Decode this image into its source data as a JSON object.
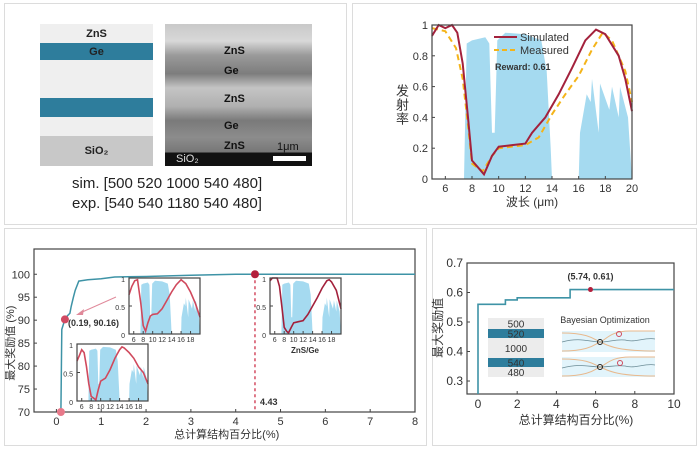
{
  "panel_a": {
    "stack_layers": [
      {
        "label": "ZnS",
        "color": "#efefef"
      },
      {
        "label": "Ge",
        "color": "#2e7d9c"
      },
      {
        "label": "",
        "color": "#efefef"
      },
      {
        "label": "",
        "color": "#2e7d9c"
      },
      {
        "label": "",
        "color": "#efefef"
      },
      {
        "label": "SiO₂",
        "color": "#c8c8c8"
      }
    ],
    "sem_labels": [
      "ZnS",
      "Ge",
      "ZnS",
      "Ge",
      "ZnS"
    ],
    "sem_substrate": "SiO₂",
    "scale_bar": "1μm",
    "sim": "sim. [500 520 1000 540 480]",
    "exp": "exp. [540 540 1180 540 480]"
  },
  "chart_data": [
    {
      "type": "line",
      "xlabel": "波长 (μm)",
      "ylabel": "发射率",
      "xlim": [
        5,
        20
      ],
      "ylim": [
        0,
        1
      ],
      "xticks": [
        6,
        8,
        10,
        12,
        14,
        16,
        18,
        20
      ],
      "yticks": [
        0,
        0.2,
        0.4,
        0.6,
        0.8,
        1
      ],
      "legend_position": "top-center",
      "annotation": "Reward: 0.61",
      "series": [
        {
          "name": "Simulated",
          "color": "#a3213c",
          "style": "solid",
          "x": [
            5,
            5.5,
            6,
            6.5,
            6.9,
            7.3,
            7.7,
            8,
            8.5,
            8.9,
            9.5,
            10,
            11,
            12,
            12.5,
            13.5,
            14.5,
            15.5,
            16.5,
            17.3,
            18,
            19,
            19.5,
            20
          ],
          "y": [
            0.93,
            1,
            0.98,
            1,
            0.95,
            0.75,
            0.4,
            0.12,
            0.07,
            0.03,
            0.15,
            0.21,
            0.22,
            0.23,
            0.3,
            0.4,
            0.55,
            0.72,
            0.9,
            0.97,
            0.94,
            0.8,
            0.65,
            0.44
          ]
        },
        {
          "name": "Measured",
          "color": "#f4b41a",
          "style": "dashed",
          "x": [
            5,
            6,
            6.8,
            7.3,
            7.7,
            8,
            8.8,
            9.5,
            10,
            12,
            13,
            14,
            15,
            16,
            17,
            17.8,
            18.5,
            19.5,
            20
          ],
          "y": [
            0.98,
            0.96,
            0.85,
            0.65,
            0.35,
            0.1,
            0.05,
            0.15,
            0.2,
            0.22,
            0.27,
            0.42,
            0.55,
            0.67,
            0.84,
            0.95,
            0.9,
            0.7,
            0.5
          ]
        },
        {
          "color": "#87ceeb",
          "style": "fill",
          "x": [
            7.4,
            7.6,
            8,
            9,
            9.3,
            9.5,
            9.7,
            9.9,
            10.5,
            12,
            13.2,
            13.6,
            13.9,
            14,
            16,
            16.1,
            16.6,
            16.9,
            17,
            17.5,
            17.6,
            18.3,
            18.5,
            19,
            19.1,
            19.7,
            20
          ],
          "y": [
            0,
            0.88,
            0.9,
            0.92,
            0.88,
            0.3,
            0.3,
            0.9,
            0.95,
            0.94,
            0.9,
            0.7,
            0.2,
            0,
            0,
            0.3,
            0.55,
            0.5,
            0.65,
            0.3,
            0.62,
            0.45,
            0.6,
            0.4,
            0.6,
            0.4,
            0
          ]
        }
      ]
    },
    {
      "type": "line",
      "xlabel": "总计算结构百分比(%)",
      "ylabel": "最大奖励值 (%)",
      "xlim": [
        -0.5,
        8
      ],
      "ylim": [
        70,
        105.5
      ],
      "xticks": [
        0,
        1,
        2,
        3,
        4,
        5,
        6,
        7,
        8
      ],
      "yticks": [
        70,
        75,
        80,
        85,
        90,
        95,
        100
      ],
      "series": [
        {
          "color": "#3e93a6",
          "x": [
            0.1,
            0.12,
            0.19,
            0.25,
            0.3,
            0.33,
            0.38,
            0.42,
            0.5,
            0.55,
            0.7,
            1,
            1.3,
            2,
            3,
            4,
            8
          ],
          "y": [
            70,
            88,
            90.16,
            91,
            91.5,
            93,
            95,
            96.5,
            98.5,
            98.6,
            98.8,
            99,
            99.4,
            99.5,
            99.8,
            100,
            100
          ]
        }
      ],
      "points": [
        {
          "x": 0.1,
          "y": 70,
          "color": "#e8798a"
        },
        {
          "x": 0.19,
          "y": 90.16,
          "color": "#d04a62",
          "label": "(0.19, 90.16)"
        },
        {
          "x": 4.43,
          "y": 100,
          "color": "#b3203d"
        }
      ],
      "vline": {
        "x": 4.43,
        "label": "4.43",
        "color": "#c8203a"
      },
      "insets": [
        {
          "xticks": [
            6,
            8,
            10,
            12,
            14,
            16,
            18
          ],
          "yticks": [
            0,
            0.5,
            1
          ],
          "curve_color": "#d0495d",
          "x": [
            5,
            5.6,
            6.2,
            6.8,
            7.5,
            8,
            8.5,
            9,
            9.5,
            10,
            11,
            12,
            13,
            14,
            15,
            16,
            17,
            18,
            19,
            20
          ],
          "y": [
            0.7,
            0.85,
            0.95,
            0.97,
            0.55,
            0.15,
            0.05,
            0.2,
            0.32,
            0.35,
            0.36,
            0.45,
            0.6,
            0.75,
            0.88,
            0.97,
            0.9,
            0.75,
            0.55,
            0.3
          ]
        },
        {
          "xticks": [
            6,
            8,
            10,
            12,
            14,
            16,
            18
          ],
          "yticks": [
            0,
            0.5,
            1
          ],
          "curve_color": "#d0495d",
          "x": [
            5,
            5.5,
            6,
            6.5,
            7,
            7.5,
            8,
            8.5,
            9,
            9.5,
            10,
            11,
            12,
            13,
            14,
            14.5,
            15,
            16,
            17,
            18,
            19,
            20
          ],
          "y": [
            0.7,
            0.8,
            0.9,
            0.85,
            0.6,
            0.3,
            0.08,
            0.05,
            0.02,
            0.2,
            0.35,
            0.4,
            0.55,
            0.75,
            0.9,
            0.95,
            0.93,
            0.85,
            0.75,
            0.6,
            0.5,
            0.3
          ]
        },
        {
          "xticks": [
            6,
            8,
            10,
            12,
            14,
            16,
            18
          ],
          "yticks": [
            0,
            0.5,
            1
          ],
          "curve_color": "#a3213c",
          "label": "ZnS/Ge",
          "x": [
            5,
            5.5,
            6,
            6.5,
            7,
            7.5,
            8,
            8.5,
            8.9,
            9.5,
            10,
            11,
            12,
            13,
            14,
            15,
            16,
            17,
            17.5,
            18,
            19,
            20
          ],
          "y": [
            0.95,
            1,
            1,
            1,
            0.85,
            0.5,
            0.12,
            0.05,
            0.02,
            0.12,
            0.2,
            0.22,
            0.24,
            0.35,
            0.5,
            0.65,
            0.82,
            0.95,
            0.97,
            0.93,
            0.78,
            0.45
          ]
        }
      ]
    },
    {
      "type": "line",
      "xlabel": "总计算结构百分比(%)",
      "ylabel": "最大奖励值",
      "xlim": [
        -0.56,
        10
      ],
      "ylim": [
        0.256,
        0.7
      ],
      "xticks": [
        0,
        2,
        4,
        6,
        8,
        10
      ],
      "yticks": [
        0.3,
        0.4,
        0.5,
        0.6,
        0.7
      ],
      "series": [
        {
          "color": "#3e93a6",
          "x": [
            0,
            0,
            1.4,
            1.4,
            2,
            2,
            4.7,
            4.7,
            10
          ],
          "y": [
            0.256,
            0.56,
            0.56,
            0.575,
            0.575,
            0.582,
            0.582,
            0.61,
            0.61
          ]
        }
      ],
      "points": [
        {
          "x": 5.74,
          "y": 0.61,
          "color": "#b3203d",
          "label": "(5.74, 0.61)"
        }
      ],
      "stack_labels": [
        {
          "label": "500",
          "color": "#ececec"
        },
        {
          "label": "520",
          "color": "#2e7d9c"
        },
        {
          "label": "1000",
          "color": "#ececec"
        },
        {
          "label": "540",
          "color": "#2e7d9c"
        },
        {
          "label": "480",
          "color": "#ececec"
        }
      ],
      "inset_title": "Bayesian Optimization"
    }
  ]
}
